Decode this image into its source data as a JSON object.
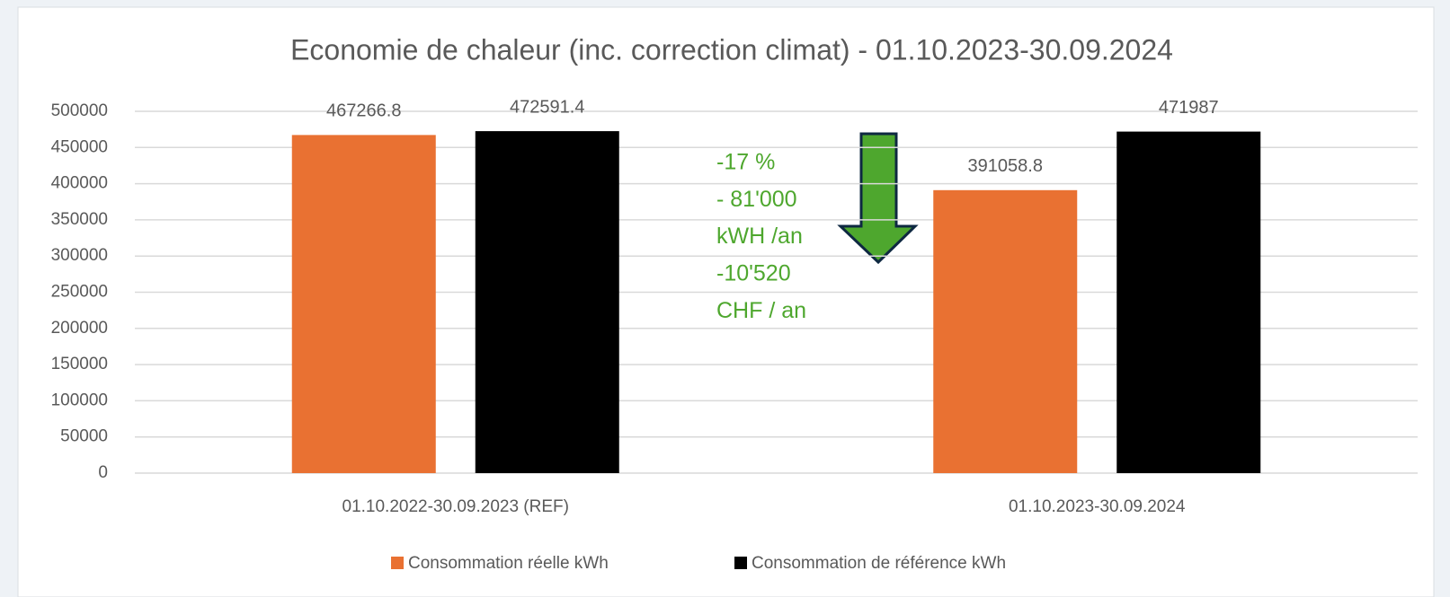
{
  "chart_data": {
    "type": "bar",
    "title": "Economie de chaleur (inc. correction climat) - 01.10.2023-30.09.2024",
    "categories": [
      "01.10.2022-30.09.2023 (REF)",
      "01.10.2023-30.09.2024"
    ],
    "series": [
      {
        "name": "Consommation réelle kWh",
        "color": "#e97132",
        "values": [
          467266.8,
          391058.8
        ]
      },
      {
        "name": "Consommation de référence kWh",
        "color": "#000000",
        "values": [
          472591.4,
          471987
        ]
      }
    ],
    "ylim": [
      0,
      500000
    ],
    "yticks": [
      0,
      50000,
      100000,
      150000,
      200000,
      250000,
      300000,
      350000,
      400000,
      450000,
      500000
    ],
    "grid": true,
    "legend": "bottom",
    "annotations": [
      "-17 %",
      "- 81'000",
      "kWH /an",
      "-10'520",
      "CHF / an"
    ],
    "annotation_color": "#4ea72e"
  }
}
